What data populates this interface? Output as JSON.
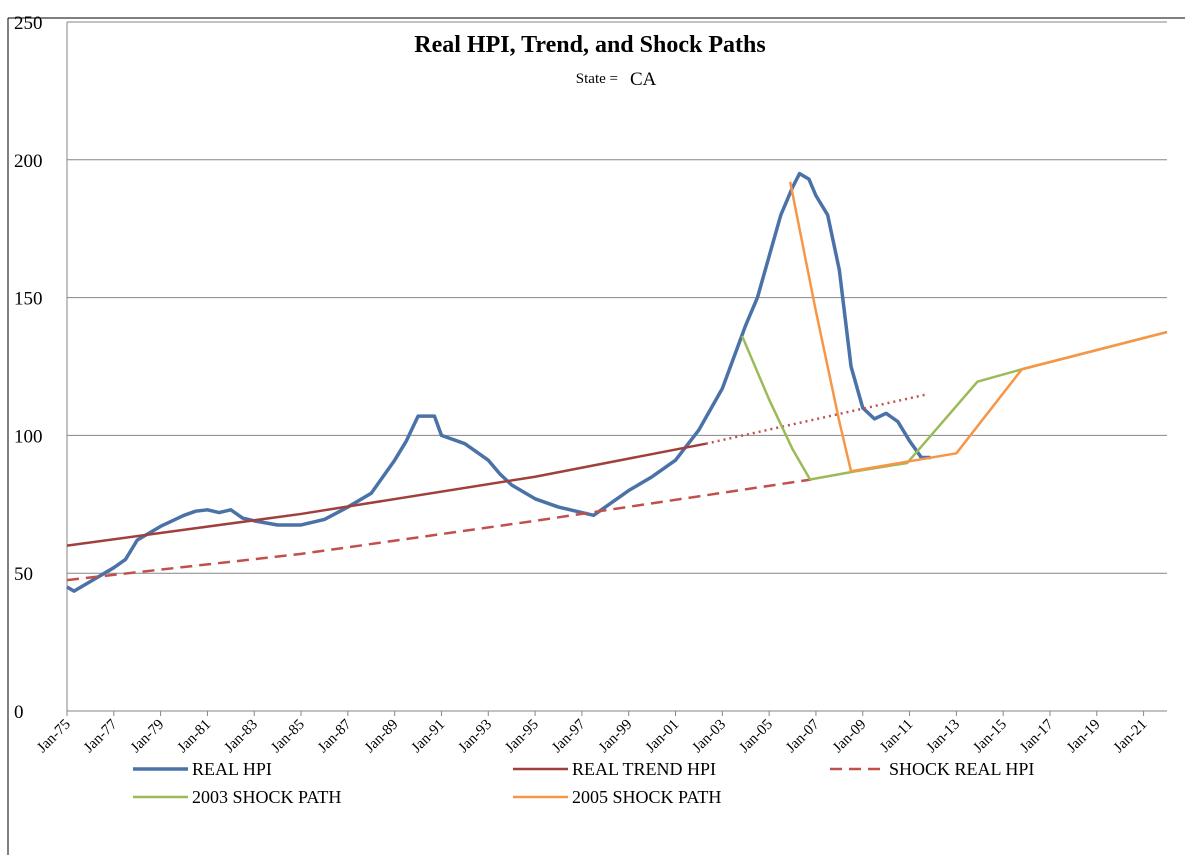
{
  "chart_data": {
    "type": "line",
    "title": "Real HPI, Trend, and Shock Paths",
    "subtitle_label": "State =",
    "subtitle_value": "CA",
    "xlim": [
      1975,
      2022
    ],
    "ylim": [
      0,
      250
    ],
    "yticks": [
      0,
      50,
      100,
      150,
      200,
      250
    ],
    "xticks": [
      {
        "value": 1975,
        "label": "Jan-75"
      },
      {
        "value": 1977,
        "label": "Jan-77"
      },
      {
        "value": 1979,
        "label": "Jan-79"
      },
      {
        "value": 1981,
        "label": "Jan-81"
      },
      {
        "value": 1983,
        "label": "Jan-83"
      },
      {
        "value": 1985,
        "label": "Jan-85"
      },
      {
        "value": 1987,
        "label": "Jan-87"
      },
      {
        "value": 1989,
        "label": "Jan-89"
      },
      {
        "value": 1991,
        "label": "Jan-91"
      },
      {
        "value": 1993,
        "label": "Jan-93"
      },
      {
        "value": 1995,
        "label": "Jan-95"
      },
      {
        "value": 1997,
        "label": "Jan-97"
      },
      {
        "value": 1999,
        "label": "Jan-99"
      },
      {
        "value": 2001,
        "label": "Jan-01"
      },
      {
        "value": 2003,
        "label": "Jan-03"
      },
      {
        "value": 2005,
        "label": "Jan-05"
      },
      {
        "value": 2007,
        "label": "Jan-07"
      },
      {
        "value": 2009,
        "label": "Jan-09"
      },
      {
        "value": 2011,
        "label": "Jan-11"
      },
      {
        "value": 2013,
        "label": "Jan-13"
      },
      {
        "value": 2015,
        "label": "Jan-15"
      },
      {
        "value": 2017,
        "label": "Jan-17"
      },
      {
        "value": 2019,
        "label": "Jan-19"
      },
      {
        "value": 2021,
        "label": "Jan-21"
      }
    ],
    "grid": true,
    "series": [
      {
        "name": "REAL HPI",
        "color": "#4a72a8",
        "width": 3.5,
        "dash": "solid",
        "x": [
          1975,
          1975.3,
          1976,
          1977,
          1977.5,
          1978,
          1979,
          1980,
          1980.5,
          1981,
          1981.5,
          1982,
          1982.5,
          1983,
          1984,
          1985,
          1986,
          1987,
          1988,
          1989,
          1989.5,
          1990,
          1990.7,
          1991,
          1992,
          1993,
          1993.5,
          1994,
          1995,
          1996,
          1997,
          1997.5,
          1998,
          1999,
          2000,
          2001,
          2002,
          2003,
          2004,
          2004.5,
          2005,
          2005.5,
          2006,
          2006.3,
          2006.7,
          2007,
          2007.5,
          2008,
          2008.5,
          2009,
          2009.5,
          2010,
          2010.5,
          2011,
          2011.5,
          2011.9
        ],
        "values": [
          45,
          43.5,
          47,
          52,
          55,
          62,
          67,
          71,
          72.5,
          73,
          72,
          73,
          70,
          69,
          67.5,
          67.5,
          69.5,
          74,
          79,
          91,
          98,
          107,
          107,
          100,
          97,
          91,
          86,
          82,
          77,
          74,
          72,
          71,
          74,
          80,
          85,
          91,
          102,
          117,
          140,
          150,
          165,
          180,
          190,
          195,
          193,
          187,
          180,
          160,
          125,
          110,
          106,
          108,
          105,
          98,
          92,
          92
        ]
      },
      {
        "name": "REAL TREND HPI",
        "color": "#a0403c",
        "width": 2.5,
        "dash": "solid",
        "x": [
          1975,
          1985,
          1995,
          2002.3
        ],
        "values": [
          60,
          71.5,
          85,
          97
        ]
      },
      {
        "color": "#c0504d",
        "width": 2.5,
        "dash": "dotted",
        "x": [
          2002.3,
          2006,
          2011.8
        ],
        "values": [
          97,
          104,
          115
        ]
      },
      {
        "name": "SHOCK REAL HPI",
        "color": "#c0504d",
        "width": 2.5,
        "dash": "dashed",
        "x": [
          1975,
          1985,
          1995,
          2006.8
        ],
        "values": [
          47.5,
          57,
          69,
          84
        ]
      },
      {
        "name": "2003 SHOCK PATH",
        "color": "#9bbb59",
        "width": 2.5,
        "dash": "solid",
        "x": [
          2003.85,
          2005,
          2006,
          2006.75,
          2008.7,
          2010.9,
          2013.9,
          2015.8,
          2022
        ],
        "values": [
          136,
          113,
          95,
          84,
          87,
          90,
          119.5,
          124,
          137.5
        ]
      },
      {
        "name": "2005 SHOCK PATH",
        "color": "#f79646",
        "width": 2.5,
        "dash": "solid",
        "x": [
          2005.9,
          2007,
          2008,
          2008.5,
          2013,
          2015.8,
          2022
        ],
        "values": [
          192,
          145,
          105,
          87,
          93.5,
          124,
          137.5
        ]
      }
    ]
  }
}
